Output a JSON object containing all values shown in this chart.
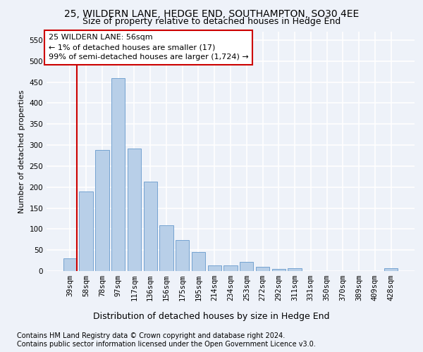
{
  "title": "25, WILDERN LANE, HEDGE END, SOUTHAMPTON, SO30 4EE",
  "subtitle": "Size of property relative to detached houses in Hedge End",
  "xlabel": "Distribution of detached houses by size in Hedge End",
  "ylabel": "Number of detached properties",
  "categories": [
    "39sqm",
    "58sqm",
    "78sqm",
    "97sqm",
    "117sqm",
    "136sqm",
    "156sqm",
    "175sqm",
    "195sqm",
    "214sqm",
    "234sqm",
    "253sqm",
    "272sqm",
    "292sqm",
    "311sqm",
    "331sqm",
    "350sqm",
    "370sqm",
    "389sqm",
    "409sqm",
    "428sqm"
  ],
  "values": [
    30,
    190,
    288,
    460,
    292,
    213,
    109,
    74,
    46,
    13,
    13,
    22,
    10,
    5,
    6,
    0,
    0,
    0,
    0,
    0,
    6
  ],
  "bar_color": "#b8cfe8",
  "bar_edge_color": "#6699cc",
  "highlight_color": "#cc0000",
  "annotation_text": "25 WILDERN LANE: 56sqm\n← 1% of detached houses are smaller (17)\n99% of semi-detached houses are larger (1,724) →",
  "annotation_box_color": "#ffffff",
  "annotation_box_edge": "#cc0000",
  "ylim": [
    0,
    570
  ],
  "yticks": [
    0,
    50,
    100,
    150,
    200,
    250,
    300,
    350,
    400,
    450,
    500,
    550
  ],
  "footer_line1": "Contains HM Land Registry data © Crown copyright and database right 2024.",
  "footer_line2": "Contains public sector information licensed under the Open Government Licence v3.0.",
  "bg_color": "#eef2f9",
  "plot_bg_color": "#eef2f9",
  "grid_color": "#ffffff",
  "title_fontsize": 10,
  "subtitle_fontsize": 9,
  "ylabel_fontsize": 8,
  "tick_fontsize": 7.5,
  "footer_fontsize": 7,
  "xlabel_fontsize": 9
}
